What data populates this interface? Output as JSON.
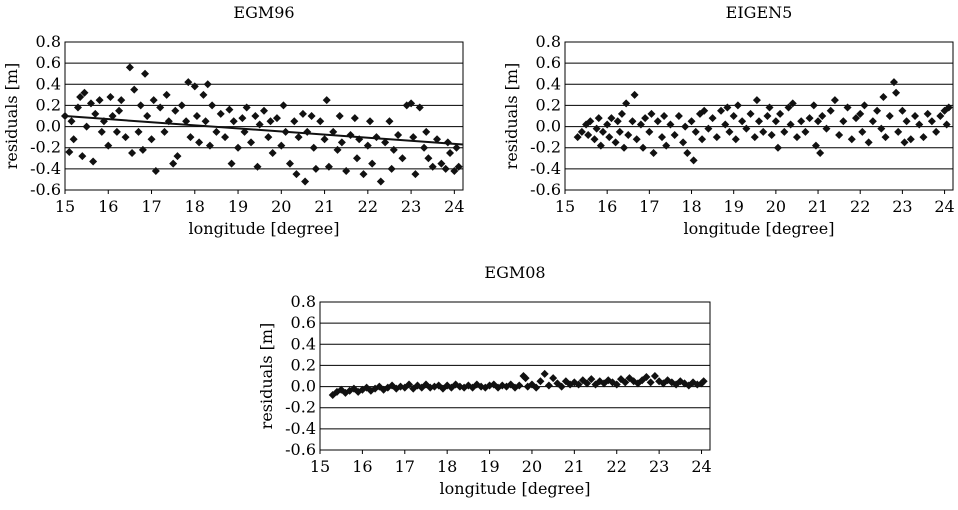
{
  "chart_data": [
    {
      "type": "scatter",
      "title": "EGM96",
      "xlabel": "longitude [degree]",
      "ylabel": "residuals [m]",
      "xlim": [
        15,
        24.2
      ],
      "ylim": [
        -0.6,
        0.8
      ],
      "xticks": [
        "15",
        "16",
        "17",
        "18",
        "19",
        "20",
        "21",
        "22",
        "23",
        "24"
      ],
      "yticks": [
        "-0.6",
        "-0.4",
        "-0.2",
        "0.0",
        "0.2",
        "0.4",
        "0.6",
        "0.8"
      ],
      "grid": true,
      "marker": "diamond",
      "trendline": {
        "x": [
          15.0,
          24.2
        ],
        "y": [
          0.1,
          -0.17
        ]
      },
      "points": [
        [
          15.0,
          0.1
        ],
        [
          15.1,
          -0.24
        ],
        [
          15.15,
          0.05
        ],
        [
          15.2,
          -0.12
        ],
        [
          15.3,
          0.18
        ],
        [
          15.35,
          0.28
        ],
        [
          15.4,
          -0.28
        ],
        [
          15.45,
          0.32
        ],
        [
          15.5,
          0.0
        ],
        [
          15.6,
          0.22
        ],
        [
          15.65,
          -0.33
        ],
        [
          15.7,
          0.12
        ],
        [
          15.8,
          0.25
        ],
        [
          15.85,
          -0.05
        ],
        [
          15.9,
          0.05
        ],
        [
          16.0,
          -0.18
        ],
        [
          16.05,
          0.28
        ],
        [
          16.1,
          0.1
        ],
        [
          16.2,
          -0.05
        ],
        [
          16.25,
          0.15
        ],
        [
          16.3,
          0.25
        ],
        [
          16.4,
          -0.1
        ],
        [
          16.5,
          0.56
        ],
        [
          16.55,
          -0.25
        ],
        [
          16.6,
          0.35
        ],
        [
          16.7,
          -0.05
        ],
        [
          16.75,
          0.2
        ],
        [
          16.8,
          -0.22
        ],
        [
          16.85,
          0.5
        ],
        [
          16.9,
          0.1
        ],
        [
          17.0,
          -0.12
        ],
        [
          17.05,
          0.25
        ],
        [
          17.1,
          -0.42
        ],
        [
          17.2,
          0.18
        ],
        [
          17.3,
          -0.05
        ],
        [
          17.35,
          0.3
        ],
        [
          17.4,
          0.05
        ],
        [
          17.5,
          -0.35
        ],
        [
          17.55,
          0.15
        ],
        [
          17.6,
          -0.28
        ],
        [
          17.7,
          0.2
        ],
        [
          17.8,
          0.05
        ],
        [
          17.85,
          0.42
        ],
        [
          17.9,
          -0.1
        ],
        [
          18.0,
          0.38
        ],
        [
          18.05,
          0.1
        ],
        [
          18.1,
          -0.15
        ],
        [
          18.2,
          0.3
        ],
        [
          18.25,
          0.05
        ],
        [
          18.3,
          0.4
        ],
        [
          18.35,
          -0.18
        ],
        [
          18.4,
          0.2
        ],
        [
          18.5,
          -0.05
        ],
        [
          18.6,
          0.12
        ],
        [
          18.7,
          -0.1
        ],
        [
          18.8,
          0.16
        ],
        [
          18.85,
          -0.35
        ],
        [
          18.9,
          0.05
        ],
        [
          19.0,
          -0.2
        ],
        [
          19.1,
          0.08
        ],
        [
          19.15,
          -0.05
        ],
        [
          19.2,
          0.18
        ],
        [
          19.3,
          -0.15
        ],
        [
          19.4,
          0.1
        ],
        [
          19.45,
          -0.38
        ],
        [
          19.5,
          0.02
        ],
        [
          19.6,
          0.15
        ],
        [
          19.7,
          -0.1
        ],
        [
          19.75,
          0.05
        ],
        [
          19.8,
          -0.25
        ],
        [
          19.9,
          0.08
        ],
        [
          20.0,
          -0.18
        ],
        [
          20.05,
          0.2
        ],
        [
          20.1,
          -0.05
        ],
        [
          20.2,
          -0.35
        ],
        [
          20.3,
          0.05
        ],
        [
          20.35,
          -0.45
        ],
        [
          20.4,
          -0.1
        ],
        [
          20.5,
          0.12
        ],
        [
          20.55,
          -0.52
        ],
        [
          20.6,
          -0.05
        ],
        [
          20.7,
          0.1
        ],
        [
          20.75,
          -0.2
        ],
        [
          20.8,
          -0.4
        ],
        [
          20.9,
          0.05
        ],
        [
          21.0,
          -0.12
        ],
        [
          21.05,
          0.25
        ],
        [
          21.1,
          -0.38
        ],
        [
          21.2,
          -0.05
        ],
        [
          21.3,
          -0.22
        ],
        [
          21.35,
          0.1
        ],
        [
          21.4,
          -0.15
        ],
        [
          21.5,
          -0.42
        ],
        [
          21.6,
          -0.08
        ],
        [
          21.7,
          0.08
        ],
        [
          21.75,
          -0.3
        ],
        [
          21.8,
          -0.12
        ],
        [
          21.9,
          -0.45
        ],
        [
          22.0,
          -0.18
        ],
        [
          22.05,
          0.05
        ],
        [
          22.1,
          -0.35
        ],
        [
          22.2,
          -0.1
        ],
        [
          22.3,
          -0.52
        ],
        [
          22.4,
          -0.15
        ],
        [
          22.5,
          0.05
        ],
        [
          22.55,
          -0.4
        ],
        [
          22.6,
          -0.22
        ],
        [
          22.7,
          -0.08
        ],
        [
          22.8,
          -0.3
        ],
        [
          22.9,
          0.2
        ],
        [
          23.0,
          0.22
        ],
        [
          23.05,
          -0.1
        ],
        [
          23.1,
          -0.45
        ],
        [
          23.2,
          0.18
        ],
        [
          23.3,
          -0.2
        ],
        [
          23.35,
          -0.05
        ],
        [
          23.4,
          -0.3
        ],
        [
          23.5,
          -0.38
        ],
        [
          23.6,
          -0.12
        ],
        [
          23.7,
          -0.35
        ],
        [
          23.8,
          -0.4
        ],
        [
          23.85,
          -0.15
        ],
        [
          23.9,
          -0.25
        ],
        [
          24.0,
          -0.42
        ],
        [
          24.05,
          -0.2
        ],
        [
          24.1,
          -0.38
        ]
      ]
    },
    {
      "type": "scatter",
      "title": "EIGEN5",
      "xlabel": "longitude [degree]",
      "ylabel": "residuals [m]",
      "xlim": [
        15,
        24.2
      ],
      "ylim": [
        -0.6,
        0.8
      ],
      "xticks": [
        "15",
        "16",
        "17",
        "18",
        "19",
        "20",
        "21",
        "22",
        "23",
        "24"
      ],
      "yticks": [
        "-0.6",
        "-0.4",
        "-0.2",
        "0.0",
        "0.2",
        "0.4",
        "0.6",
        "0.8"
      ],
      "grid": true,
      "marker": "diamond",
      "points": [
        [
          15.3,
          -0.1
        ],
        [
          15.4,
          -0.05
        ],
        [
          15.5,
          0.02
        ],
        [
          15.55,
          -0.08
        ],
        [
          15.6,
          0.05
        ],
        [
          15.7,
          -0.12
        ],
        [
          15.75,
          -0.02
        ],
        [
          15.8,
          0.08
        ],
        [
          15.85,
          -0.18
        ],
        [
          15.9,
          -0.05
        ],
        [
          16.0,
          0.02
        ],
        [
          16.05,
          -0.1
        ],
        [
          16.1,
          0.08
        ],
        [
          16.2,
          -0.15
        ],
        [
          16.25,
          0.05
        ],
        [
          16.3,
          -0.05
        ],
        [
          16.35,
          0.12
        ],
        [
          16.4,
          -0.2
        ],
        [
          16.45,
          0.22
        ],
        [
          16.5,
          -0.08
        ],
        [
          16.6,
          0.05
        ],
        [
          16.65,
          0.3
        ],
        [
          16.7,
          -0.12
        ],
        [
          16.8,
          0.02
        ],
        [
          16.85,
          -0.2
        ],
        [
          16.9,
          0.08
        ],
        [
          17.0,
          -0.05
        ],
        [
          17.05,
          0.12
        ],
        [
          17.1,
          -0.25
        ],
        [
          17.2,
          0.05
        ],
        [
          17.3,
          -0.1
        ],
        [
          17.35,
          0.1
        ],
        [
          17.4,
          -0.18
        ],
        [
          17.5,
          0.02
        ],
        [
          17.6,
          -0.08
        ],
        [
          17.7,
          0.1
        ],
        [
          17.8,
          -0.15
        ],
        [
          17.85,
          0.0
        ],
        [
          17.9,
          -0.25
        ],
        [
          18.0,
          0.05
        ],
        [
          18.05,
          -0.32
        ],
        [
          18.1,
          -0.05
        ],
        [
          18.2,
          0.12
        ],
        [
          18.25,
          -0.12
        ],
        [
          18.3,
          0.15
        ],
        [
          18.4,
          -0.02
        ],
        [
          18.5,
          0.08
        ],
        [
          18.6,
          -0.1
        ],
        [
          18.7,
          0.15
        ],
        [
          18.8,
          0.02
        ],
        [
          18.85,
          0.18
        ],
        [
          18.9,
          -0.05
        ],
        [
          19.0,
          0.1
        ],
        [
          19.05,
          -0.12
        ],
        [
          19.1,
          0.2
        ],
        [
          19.2,
          0.05
        ],
        [
          19.3,
          -0.02
        ],
        [
          19.4,
          0.12
        ],
        [
          19.5,
          -0.1
        ],
        [
          19.55,
          0.25
        ],
        [
          19.6,
          0.05
        ],
        [
          19.7,
          -0.05
        ],
        [
          19.8,
          0.1
        ],
        [
          19.85,
          0.18
        ],
        [
          19.9,
          -0.08
        ],
        [
          20.0,
          0.05
        ],
        [
          20.05,
          -0.2
        ],
        [
          20.1,
          0.12
        ],
        [
          20.2,
          -0.05
        ],
        [
          20.3,
          0.18
        ],
        [
          20.35,
          0.02
        ],
        [
          20.4,
          0.22
        ],
        [
          20.5,
          -0.1
        ],
        [
          20.6,
          0.05
        ],
        [
          20.7,
          -0.05
        ],
        [
          20.8,
          0.08
        ],
        [
          20.9,
          0.2
        ],
        [
          20.95,
          -0.18
        ],
        [
          21.0,
          0.05
        ],
        [
          21.05,
          -0.25
        ],
        [
          21.1,
          0.1
        ],
        [
          21.2,
          -0.02
        ],
        [
          21.3,
          0.15
        ],
        [
          21.4,
          0.25
        ],
        [
          21.5,
          -0.08
        ],
        [
          21.6,
          0.05
        ],
        [
          21.7,
          0.18
        ],
        [
          21.8,
          -0.12
        ],
        [
          21.9,
          0.08
        ],
        [
          22.0,
          0.12
        ],
        [
          22.05,
          -0.05
        ],
        [
          22.1,
          0.2
        ],
        [
          22.2,
          -0.15
        ],
        [
          22.3,
          0.05
        ],
        [
          22.4,
          0.15
        ],
        [
          22.5,
          -0.02
        ],
        [
          22.55,
          0.28
        ],
        [
          22.6,
          -0.1
        ],
        [
          22.7,
          0.1
        ],
        [
          22.8,
          0.42
        ],
        [
          22.85,
          0.32
        ],
        [
          22.9,
          -0.05
        ],
        [
          23.0,
          0.15
        ],
        [
          23.05,
          -0.15
        ],
        [
          23.1,
          0.05
        ],
        [
          23.2,
          -0.12
        ],
        [
          23.3,
          0.1
        ],
        [
          23.4,
          0.02
        ],
        [
          23.5,
          -0.1
        ],
        [
          23.6,
          0.12
        ],
        [
          23.7,
          0.05
        ],
        [
          23.8,
          -0.05
        ],
        [
          23.9,
          0.1
        ],
        [
          24.0,
          0.15
        ],
        [
          24.05,
          0.02
        ],
        [
          24.1,
          0.18
        ]
      ]
    },
    {
      "type": "scatter",
      "title": "EGM08",
      "xlabel": "longitude [degree]",
      "ylabel": "residuals [m]",
      "xlim": [
        15,
        24.2
      ],
      "ylim": [
        -0.6,
        0.8
      ],
      "xticks": [
        "15",
        "16",
        "17",
        "18",
        "19",
        "20",
        "21",
        "22",
        "23",
        "24"
      ],
      "yticks": [
        "-0.6",
        "-0.4",
        "-0.2",
        "0.0",
        "0.2",
        "0.4",
        "0.6",
        "0.8"
      ],
      "grid": true,
      "marker": "diamond",
      "points": [
        [
          15.3,
          -0.08
        ],
        [
          15.4,
          -0.05
        ],
        [
          15.5,
          -0.03
        ],
        [
          15.6,
          -0.06
        ],
        [
          15.7,
          -0.04
        ],
        [
          15.8,
          -0.02
        ],
        [
          15.9,
          -0.05
        ],
        [
          16.0,
          -0.03
        ],
        [
          16.1,
          -0.01
        ],
        [
          16.2,
          -0.04
        ],
        [
          16.3,
          -0.02
        ],
        [
          16.4,
          0.0
        ],
        [
          16.5,
          -0.03
        ],
        [
          16.6,
          -0.01
        ],
        [
          16.7,
          0.01
        ],
        [
          16.8,
          -0.02
        ],
        [
          16.9,
          0.0
        ],
        [
          17.0,
          -0.01
        ],
        [
          17.1,
          0.02
        ],
        [
          17.2,
          -0.02
        ],
        [
          17.3,
          0.01
        ],
        [
          17.4,
          -0.01
        ],
        [
          17.5,
          0.02
        ],
        [
          17.6,
          -0.01
        ],
        [
          17.7,
          0.0
        ],
        [
          17.8,
          0.01
        ],
        [
          17.9,
          -0.02
        ],
        [
          18.0,
          0.01
        ],
        [
          18.1,
          -0.01
        ],
        [
          18.2,
          0.02
        ],
        [
          18.3,
          0.0
        ],
        [
          18.4,
          -0.01
        ],
        [
          18.5,
          0.01
        ],
        [
          18.6,
          -0.01
        ],
        [
          18.7,
          0.02
        ],
        [
          18.8,
          0.0
        ],
        [
          18.9,
          -0.01
        ],
        [
          19.0,
          0.01
        ],
        [
          19.1,
          0.02
        ],
        [
          19.2,
          -0.01
        ],
        [
          19.3,
          0.01
        ],
        [
          19.4,
          0.0
        ],
        [
          19.5,
          0.02
        ],
        [
          19.6,
          -0.01
        ],
        [
          19.7,
          0.01
        ],
        [
          19.8,
          0.1
        ],
        [
          19.85,
          0.08
        ],
        [
          19.9,
          0.0
        ],
        [
          20.0,
          0.02
        ],
        [
          20.1,
          -0.01
        ],
        [
          20.2,
          0.05
        ],
        [
          20.3,
          0.12
        ],
        [
          20.4,
          0.01
        ],
        [
          20.5,
          0.08
        ],
        [
          20.6,
          0.03
        ],
        [
          20.7,
          0.0
        ],
        [
          20.8,
          0.05
        ],
        [
          20.9,
          0.02
        ],
        [
          21.0,
          0.04
        ],
        [
          21.1,
          0.02
        ],
        [
          21.2,
          0.06
        ],
        [
          21.3,
          0.03
        ],
        [
          21.4,
          0.07
        ],
        [
          21.5,
          0.02
        ],
        [
          21.6,
          0.05
        ],
        [
          21.7,
          0.03
        ],
        [
          21.8,
          0.06
        ],
        [
          21.9,
          0.04
        ],
        [
          22.0,
          0.02
        ],
        [
          22.1,
          0.07
        ],
        [
          22.2,
          0.04
        ],
        [
          22.3,
          0.08
        ],
        [
          22.4,
          0.05
        ],
        [
          22.5,
          0.03
        ],
        [
          22.6,
          0.06
        ],
        [
          22.7,
          0.09
        ],
        [
          22.8,
          0.04
        ],
        [
          22.9,
          0.1
        ],
        [
          23.0,
          0.05
        ],
        [
          23.1,
          0.03
        ],
        [
          23.2,
          0.06
        ],
        [
          23.3,
          0.04
        ],
        [
          23.4,
          0.02
        ],
        [
          23.5,
          0.05
        ],
        [
          23.6,
          0.03
        ],
        [
          23.7,
          0.01
        ],
        [
          23.8,
          0.04
        ],
        [
          23.9,
          0.02
        ],
        [
          24.0,
          0.03
        ],
        [
          24.05,
          0.05
        ]
      ]
    }
  ]
}
